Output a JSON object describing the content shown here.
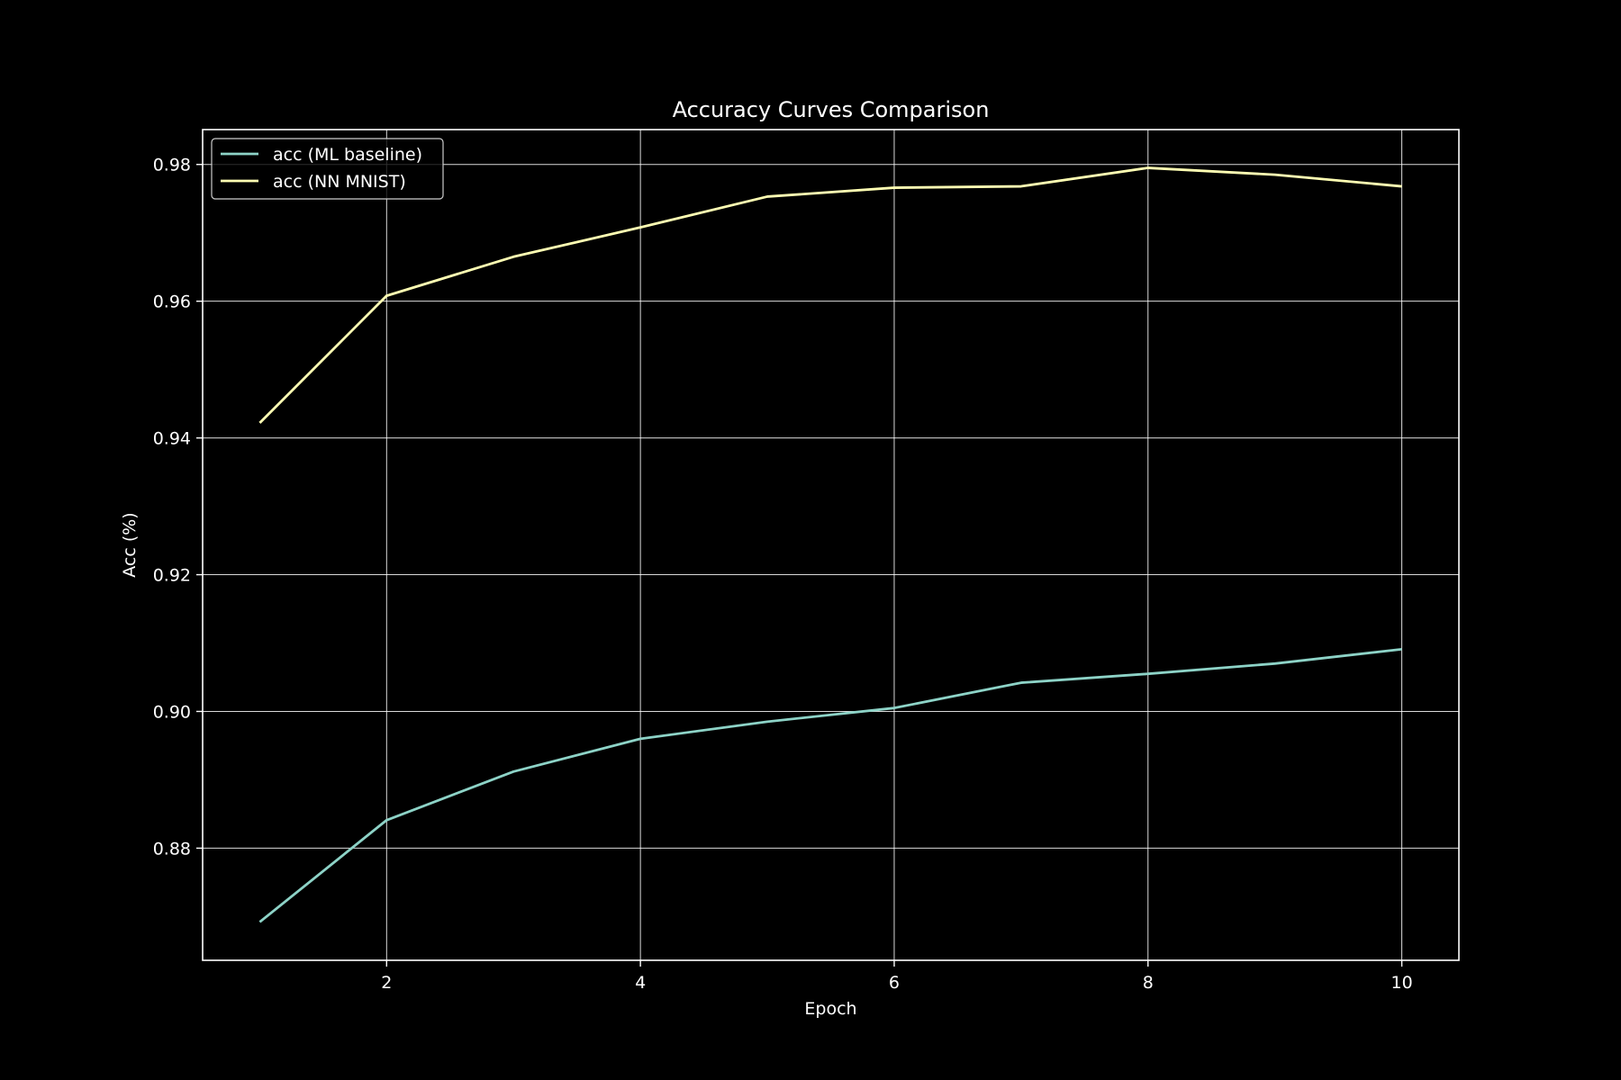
{
  "chart_data": {
    "type": "line",
    "title": "Accuracy Curves Comparison",
    "xlabel": "Epoch",
    "ylabel": "Acc (%)",
    "x": [
      1,
      2,
      3,
      4,
      5,
      6,
      7,
      8,
      9,
      10
    ],
    "xlim": [
      0.55,
      10.45
    ],
    "ylim": [
      0.8636,
      0.9851
    ],
    "xticks": [
      2,
      4,
      6,
      8,
      10
    ],
    "xtick_labels": [
      "2",
      "4",
      "6",
      "8",
      "10"
    ],
    "yticks": [
      0.88,
      0.9,
      0.92,
      0.94,
      0.96,
      0.98
    ],
    "ytick_labels": [
      "0.88",
      "0.90",
      "0.92",
      "0.94",
      "0.96",
      "0.98"
    ],
    "grid": true,
    "legend_position": "top-left",
    "series": [
      {
        "name": "acc (ML baseline)",
        "color": "#8dd3c7",
        "values": [
          0.8692,
          0.8841,
          0.8912,
          0.896,
          0.8985,
          0.9005,
          0.9042,
          0.9055,
          0.907,
          0.9091
        ]
      },
      {
        "name": "acc (NN MNIST)",
        "color": "#ffffb3",
        "values": [
          0.9422,
          0.9608,
          0.9665,
          0.9708,
          0.9753,
          0.9766,
          0.9768,
          0.9795,
          0.9785,
          0.9768
        ]
      }
    ],
    "colors": {
      "background": "#000000",
      "foreground": "#ffffff",
      "grid": "#ffffff"
    }
  }
}
